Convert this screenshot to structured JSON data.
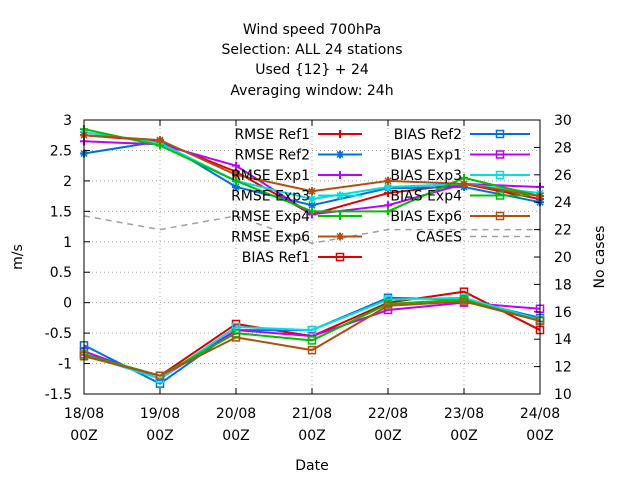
{
  "chart_data": {
    "type": "line",
    "title_lines": [
      "Wind speed 700hPa",
      "Selection: ALL     24 stations",
      "Used {12} + 24",
      "Averaging window: 24h"
    ],
    "xlabel": "Date",
    "ylabel": "m/s",
    "y2label": "No cases",
    "x": [
      "18/08 00Z",
      "19/08 00Z",
      "20/08 00Z",
      "21/08 00Z",
      "22/08 00Z",
      "23/08 00Z",
      "24/08 00Z"
    ],
    "x_ticks": [
      {
        "date": "18/08",
        "time": "00Z"
      },
      {
        "date": "19/08",
        "time": "00Z"
      },
      {
        "date": "20/08",
        "time": "00Z"
      },
      {
        "date": "21/08",
        "time": "00Z"
      },
      {
        "date": "22/08",
        "time": "00Z"
      },
      {
        "date": "23/08",
        "time": "00Z"
      },
      {
        "date": "24/08",
        "time": "00Z"
      }
    ],
    "ylim": [
      -1.5,
      3
    ],
    "y_ticks": [
      "-1.5",
      "-1",
      "-0.5",
      "0",
      "0.5",
      "1",
      "1.5",
      "2",
      "2.5",
      "3"
    ],
    "y2lim": [
      10,
      30
    ],
    "y2_ticks": [
      "10",
      "12",
      "14",
      "16",
      "18",
      "20",
      "22",
      "24",
      "26",
      "28",
      "30"
    ],
    "grid": true,
    "legend_position": "top-right",
    "series": [
      {
        "name": "RMSE Ref1",
        "color": "#e00000",
        "marker": "plus",
        "axis": "y1",
        "values": [
          2.75,
          2.65,
          2.15,
          1.45,
          1.8,
          1.95,
          1.7
        ]
      },
      {
        "name": "RMSE Ref2",
        "color": "#0070e0",
        "marker": "star",
        "axis": "y1",
        "values": [
          2.45,
          2.65,
          1.9,
          1.6,
          1.88,
          1.9,
          1.65
        ]
      },
      {
        "name": "RMSE Exp1",
        "color": "#c000ff",
        "marker": "plus",
        "axis": "y1",
        "values": [
          2.65,
          2.6,
          2.25,
          1.45,
          1.6,
          1.95,
          1.9
        ]
      },
      {
        "name": "RMSE Exp3",
        "color": "#00e0e0",
        "marker": "star",
        "axis": "y1",
        "values": [
          2.8,
          2.62,
          2.0,
          1.7,
          1.9,
          1.95,
          1.8
        ]
      },
      {
        "name": "RMSE Exp4",
        "color": "#00c000",
        "marker": "plus",
        "axis": "y1",
        "values": [
          2.85,
          2.58,
          2.0,
          1.5,
          1.5,
          2.05,
          1.75
        ]
      },
      {
        "name": "RMSE Exp6",
        "color": "#b05010",
        "marker": "star",
        "axis": "y1",
        "values": [
          2.75,
          2.67,
          2.1,
          1.83,
          2.0,
          1.95,
          1.75
        ]
      },
      {
        "name": "BIAS Ref1",
        "color": "#e00000",
        "marker": "square",
        "axis": "y1",
        "values": [
          -0.85,
          -1.2,
          -0.35,
          -0.55,
          0.0,
          0.18,
          -0.45
        ]
      },
      {
        "name": "BIAS Ref2",
        "color": "#0070e0",
        "marker": "square",
        "axis": "y1",
        "values": [
          -0.7,
          -1.33,
          -0.45,
          -0.45,
          0.08,
          0.05,
          -0.25
        ]
      },
      {
        "name": "BIAS Exp1",
        "color": "#c000ff",
        "marker": "square",
        "axis": "y1",
        "values": [
          -0.8,
          -1.25,
          -0.45,
          -0.55,
          -0.12,
          0.0,
          -0.1
        ]
      },
      {
        "name": "BIAS Exp3",
        "color": "#00e0e0",
        "marker": "square",
        "axis": "y1",
        "values": [
          -0.85,
          -1.25,
          -0.4,
          -0.45,
          0.05,
          0.08,
          -0.28
        ]
      },
      {
        "name": "BIAS Exp4",
        "color": "#00c000",
        "marker": "square",
        "axis": "y1",
        "values": [
          -0.85,
          -1.2,
          -0.5,
          -0.62,
          -0.02,
          0.05,
          -0.3
        ]
      },
      {
        "name": "BIAS Exp6",
        "color": "#b05010",
        "marker": "square",
        "axis": "y1",
        "values": [
          -0.88,
          -1.2,
          -0.57,
          -0.78,
          -0.05,
          0.02,
          -0.3
        ]
      },
      {
        "name": "CASES",
        "color": "#a0a0a0",
        "marker": "none",
        "dashed": true,
        "axis": "y2",
        "values": [
          23,
          22,
          23,
          21,
          22,
          22,
          22
        ]
      }
    ]
  }
}
